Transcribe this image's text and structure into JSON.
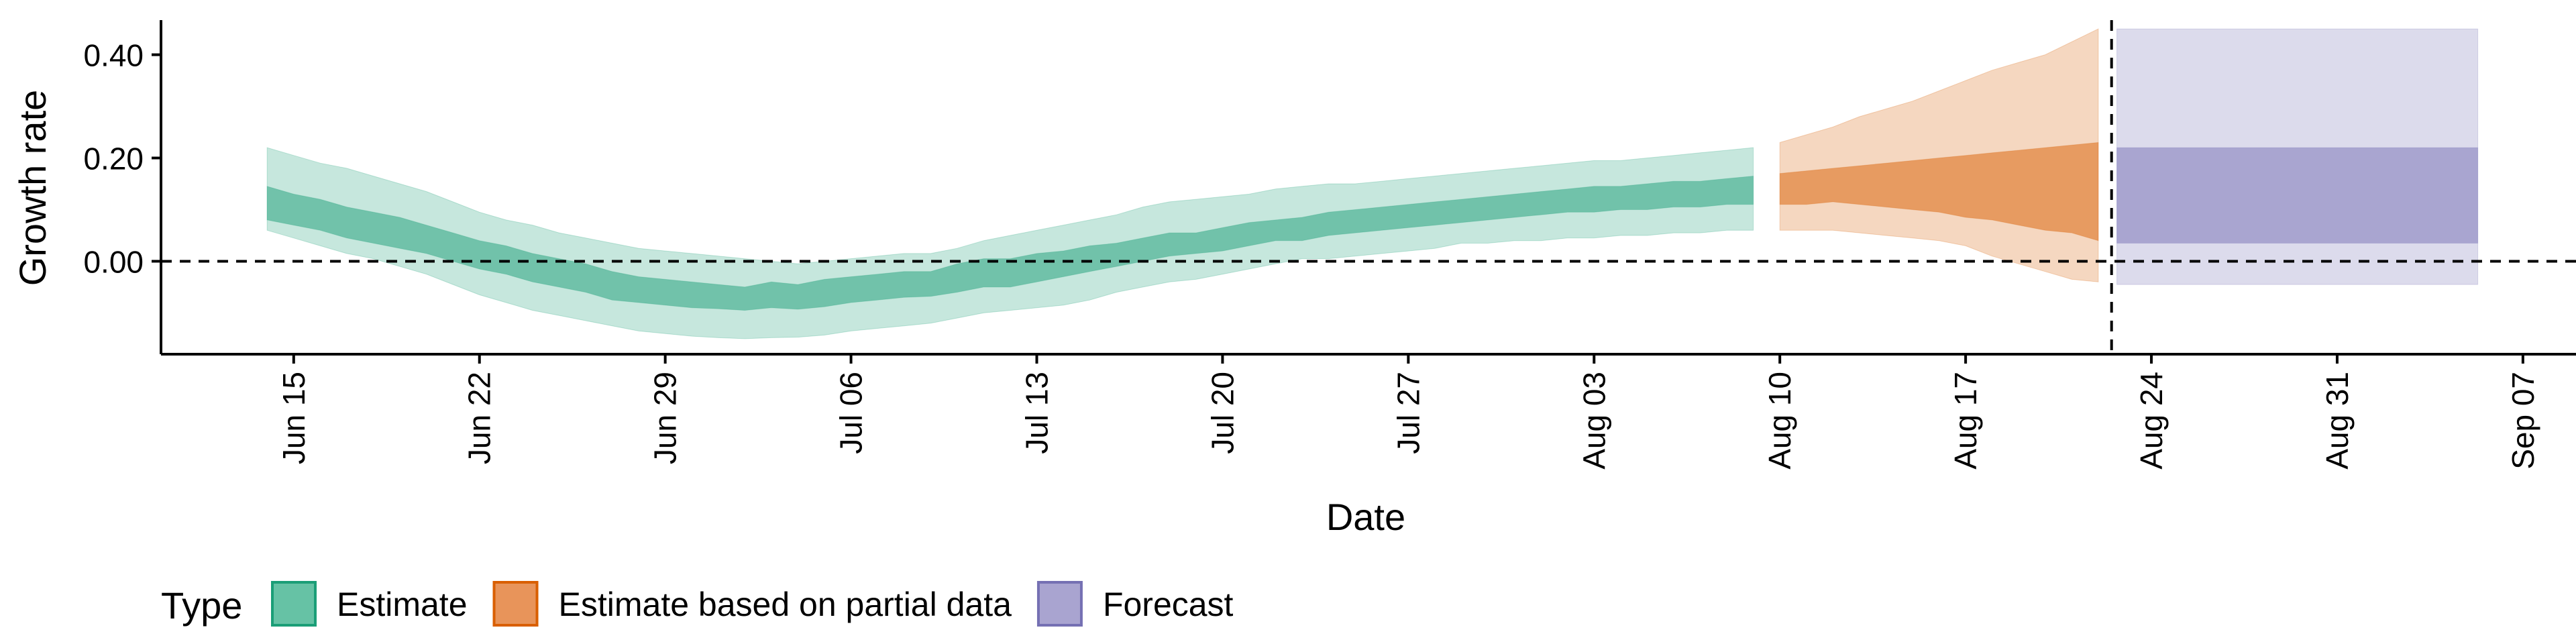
{
  "chart_data": {
    "type": "area",
    "title": "",
    "xlabel": "Date",
    "ylabel": "Growth rate",
    "x_ticks": [
      "Jun 15",
      "Jun 22",
      "Jun 29",
      "Jul 06",
      "Jul 13",
      "Jul 20",
      "Jul 27",
      "Aug 03",
      "Aug 10",
      "Aug 17",
      "Aug 24",
      "Aug 31",
      "Sep 07"
    ],
    "x_tick_dates": [
      "2020-06-15",
      "2020-06-22",
      "2020-06-29",
      "2020-07-06",
      "2020-07-13",
      "2020-07-20",
      "2020-07-27",
      "2020-08-03",
      "2020-08-10",
      "2020-08-17",
      "2020-08-24",
      "2020-08-31",
      "2020-09-07"
    ],
    "y_ticks": [
      "0.00",
      "0.20",
      "0.40"
    ],
    "y_tick_values": [
      0.0,
      0.2,
      0.4
    ],
    "xlim": [
      "2020-06-10",
      "2020-09-09"
    ],
    "ylim": [
      -0.18,
      0.48
    ],
    "reference_lines": {
      "horizontal_y": 0.0,
      "vertical_date": "2020-08-22"
    },
    "grid": false,
    "legend": {
      "title": "Type",
      "position": "bottom-left",
      "entries": [
        {
          "label": "Estimate",
          "fill": "#66c2a5",
          "stroke": "#1b9e77"
        },
        {
          "label": "Estimate based on partial data",
          "fill": "#e8945a",
          "stroke": "#d95f02"
        },
        {
          "label": "Forecast",
          "fill": "#a9a4d0",
          "stroke": "#7570b3"
        }
      ]
    },
    "series": [
      {
        "name": "Estimate",
        "color": "#1b9e77",
        "dates": [
          "2020-06-14",
          "2020-06-15",
          "2020-06-16",
          "2020-06-17",
          "2020-06-18",
          "2020-06-19",
          "2020-06-20",
          "2020-06-21",
          "2020-06-22",
          "2020-06-23",
          "2020-06-24",
          "2020-06-25",
          "2020-06-26",
          "2020-06-27",
          "2020-06-28",
          "2020-06-29",
          "2020-06-30",
          "2020-07-01",
          "2020-07-02",
          "2020-07-03",
          "2020-07-04",
          "2020-07-05",
          "2020-07-06",
          "2020-07-07",
          "2020-07-08",
          "2020-07-09",
          "2020-07-10",
          "2020-07-11",
          "2020-07-12",
          "2020-07-13",
          "2020-07-14",
          "2020-07-15",
          "2020-07-16",
          "2020-07-17",
          "2020-07-18",
          "2020-07-19",
          "2020-07-20",
          "2020-07-21",
          "2020-07-22",
          "2020-07-23",
          "2020-07-24",
          "2020-07-25",
          "2020-07-26",
          "2020-07-27",
          "2020-07-28",
          "2020-07-29",
          "2020-07-30",
          "2020-07-31",
          "2020-08-01",
          "2020-08-02",
          "2020-08-03",
          "2020-08-04",
          "2020-08-05",
          "2020-08-06",
          "2020-08-07",
          "2020-08-08",
          "2020-08-09"
        ],
        "lower_90": [
          0.06,
          0.045,
          0.03,
          0.015,
          0.005,
          -0.01,
          -0.025,
          -0.045,
          -0.065,
          -0.08,
          -0.095,
          -0.105,
          -0.115,
          -0.125,
          -0.135,
          -0.14,
          -0.145,
          -0.148,
          -0.15,
          -0.148,
          -0.147,
          -0.143,
          -0.135,
          -0.13,
          -0.125,
          -0.12,
          -0.11,
          -0.1,
          -0.095,
          -0.09,
          -0.085,
          -0.075,
          -0.06,
          -0.05,
          -0.04,
          -0.035,
          -0.025,
          -0.015,
          -0.005,
          0.005,
          0.005,
          0.01,
          0.015,
          0.02,
          0.025,
          0.035,
          0.035,
          0.04,
          0.04,
          0.045,
          0.045,
          0.05,
          0.05,
          0.055,
          0.055,
          0.06,
          0.06
        ],
        "lower_50": [
          0.08,
          0.07,
          0.06,
          0.045,
          0.035,
          0.025,
          0.015,
          0.0,
          -0.015,
          -0.025,
          -0.04,
          -0.05,
          -0.06,
          -0.075,
          -0.08,
          -0.085,
          -0.09,
          -0.092,
          -0.095,
          -0.09,
          -0.093,
          -0.088,
          -0.08,
          -0.075,
          -0.07,
          -0.068,
          -0.06,
          -0.05,
          -0.05,
          -0.04,
          -0.03,
          -0.02,
          -0.01,
          0.0,
          0.01,
          0.015,
          0.02,
          0.03,
          0.04,
          0.04,
          0.05,
          0.055,
          0.06,
          0.065,
          0.07,
          0.075,
          0.08,
          0.085,
          0.09,
          0.095,
          0.095,
          0.1,
          0.1,
          0.105,
          0.105,
          0.11,
          0.11
        ],
        "upper_50": [
          0.145,
          0.13,
          0.12,
          0.105,
          0.095,
          0.085,
          0.07,
          0.055,
          0.04,
          0.03,
          0.015,
          0.005,
          -0.005,
          -0.02,
          -0.03,
          -0.035,
          -0.04,
          -0.045,
          -0.05,
          -0.04,
          -0.045,
          -0.035,
          -0.03,
          -0.025,
          -0.02,
          -0.02,
          -0.005,
          0.005,
          0.005,
          0.015,
          0.02,
          0.03,
          0.035,
          0.045,
          0.055,
          0.055,
          0.065,
          0.075,
          0.08,
          0.085,
          0.095,
          0.1,
          0.105,
          0.11,
          0.115,
          0.12,
          0.125,
          0.13,
          0.135,
          0.14,
          0.145,
          0.145,
          0.15,
          0.155,
          0.155,
          0.16,
          0.165
        ],
        "upper_90": [
          0.22,
          0.205,
          0.19,
          0.18,
          0.165,
          0.15,
          0.135,
          0.115,
          0.095,
          0.08,
          0.07,
          0.055,
          0.045,
          0.035,
          0.025,
          0.02,
          0.015,
          0.01,
          0.005,
          0.0,
          -0.005,
          0.0,
          0.005,
          0.01,
          0.015,
          0.015,
          0.025,
          0.04,
          0.05,
          0.06,
          0.07,
          0.08,
          0.09,
          0.105,
          0.115,
          0.12,
          0.125,
          0.13,
          0.14,
          0.145,
          0.15,
          0.15,
          0.155,
          0.16,
          0.165,
          0.17,
          0.175,
          0.18,
          0.185,
          0.19,
          0.195,
          0.195,
          0.2,
          0.205,
          0.21,
          0.215,
          0.22
        ]
      },
      {
        "name": "Estimate based on partial data",
        "color": "#d95f02",
        "dates": [
          "2020-08-10",
          "2020-08-11",
          "2020-08-12",
          "2020-08-13",
          "2020-08-14",
          "2020-08-15",
          "2020-08-16",
          "2020-08-17",
          "2020-08-18",
          "2020-08-19",
          "2020-08-20",
          "2020-08-21",
          "2020-08-22"
        ],
        "lower_90": [
          0.06,
          0.06,
          0.06,
          0.055,
          0.05,
          0.045,
          0.04,
          0.03,
          0.01,
          -0.005,
          -0.02,
          -0.035,
          -0.04
        ],
        "lower_50": [
          0.11,
          0.11,
          0.115,
          0.11,
          0.105,
          0.1,
          0.095,
          0.085,
          0.08,
          0.07,
          0.06,
          0.055,
          0.04
        ],
        "upper_50": [
          0.17,
          0.175,
          0.18,
          0.185,
          0.19,
          0.195,
          0.2,
          0.205,
          0.21,
          0.215,
          0.22,
          0.225,
          0.23
        ],
        "upper_90": [
          0.23,
          0.245,
          0.26,
          0.28,
          0.295,
          0.31,
          0.33,
          0.35,
          0.37,
          0.385,
          0.4,
          0.425,
          0.45
        ]
      },
      {
        "name": "Forecast",
        "color": "#7570b3",
        "dates": [
          "2020-08-23",
          "2020-09-05"
        ],
        "lower_90": [
          -0.045,
          -0.045
        ],
        "lower_50": [
          0.035,
          0.035
        ],
        "upper_50": [
          0.22,
          0.22
        ],
        "upper_90": [
          0.45,
          0.45
        ]
      }
    ]
  }
}
